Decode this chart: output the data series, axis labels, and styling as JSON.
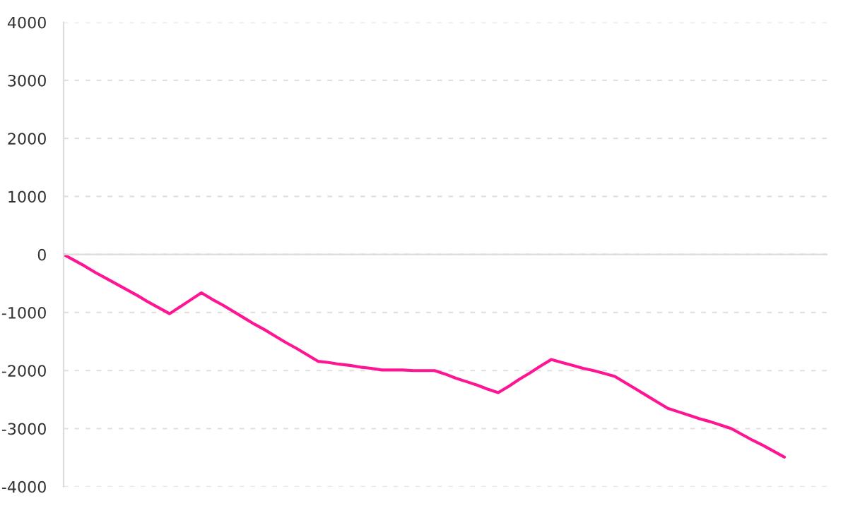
{
  "chart_data": {
    "type": "line",
    "categories": [
      null,
      null,
      null,
      null,
      null,
      null,
      null,
      null,
      null,
      null,
      null,
      null,
      null,
      null,
      null,
      null,
      null,
      null,
      null,
      null,
      null,
      null,
      null,
      null,
      null,
      null,
      null,
      null,
      null,
      null,
      null,
      null,
      null,
      null,
      null,
      null,
      null,
      null,
      null,
      null,
      null,
      null,
      null,
      null,
      null,
      null,
      null,
      null,
      null,
      null,
      null,
      null,
      null,
      null,
      null,
      null,
      null,
      null,
      null,
      null,
      null,
      null,
      null,
      null,
      null,
      null,
      null,
      null,
      null,
      null,
      null,
      null,
      null
    ],
    "series": [
      {
        "color": "#ff1493",
        "values": [
          0,
          -100,
          -200,
          -310,
          -410,
          -510,
          -610,
          -710,
          -820,
          -920,
          -1020,
          -900,
          -780,
          -660,
          -770,
          -870,
          -980,
          -1090,
          -1200,
          -1300,
          -1410,
          -1520,
          -1620,
          -1730,
          -1840,
          -1860,
          -1890,
          -1910,
          -1940,
          -1960,
          -1990,
          -1990,
          -1990,
          -2000,
          -2000,
          -2000,
          -2060,
          -2130,
          -2190,
          -2250,
          -2320,
          -2380,
          -2270,
          -2150,
          -2040,
          -1920,
          -1810,
          -1860,
          -1910,
          -1960,
          -2000,
          -2050,
          -2100,
          -2210,
          -2320,
          -2430,
          -2540,
          -2650,
          -2710,
          -2770,
          -2830,
          -2880,
          -2940,
          -3000,
          -3100,
          -3200,
          -3290,
          -3390,
          -3490,
          null,
          null,
          null,
          null
        ]
      }
    ],
    "ylim": [
      -4000,
      4000
    ],
    "yticks": [
      -4000,
      -3000,
      -2000,
      -1000,
      0,
      1000,
      2000,
      3000,
      4000
    ],
    "grid": "y",
    "tick_labels": "y",
    "marker": "none",
    "line_style": "solid"
  }
}
